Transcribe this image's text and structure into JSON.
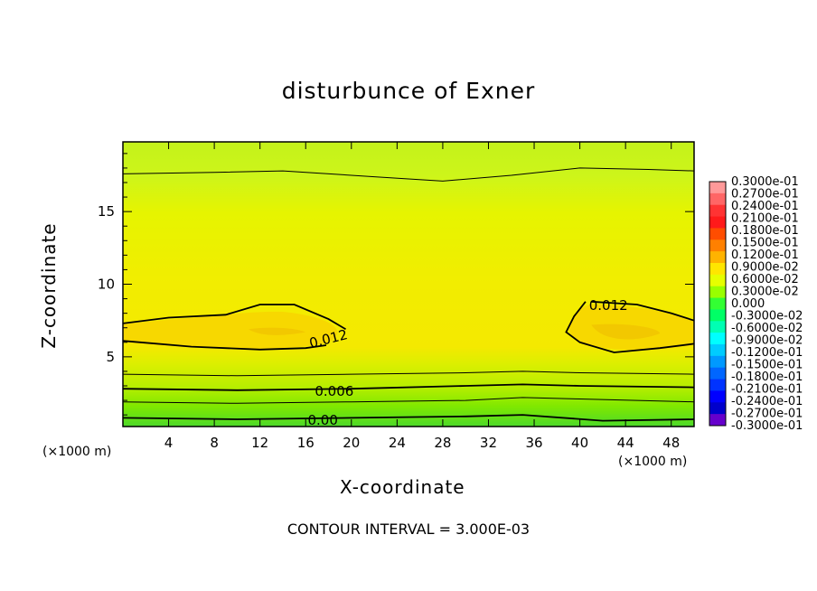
{
  "title": "disturbunce of Exner",
  "contour_interval": "CONTOUR INTERVAL = 3.000E-03",
  "x_unit": "(×1000 m)",
  "chart_data": {
    "type": "heatmap",
    "xlabel": "X-coordinate",
    "ylabel": "Z-coordinate",
    "xlim": [
      0,
      50
    ],
    "ylim": [
      0.2,
      19.8
    ],
    "x_ticks": [
      4,
      8,
      12,
      16,
      20,
      24,
      28,
      32,
      36,
      40,
      44,
      48
    ],
    "y_ticks": [
      5,
      10,
      15
    ],
    "contour_labels": [
      {
        "text": "0.012",
        "x": 18,
        "y": 6.2,
        "angle": -14
      },
      {
        "text": "0.012",
        "x": 42.5,
        "y": 8.5,
        "angle": 0
      },
      {
        "text": "0.006",
        "x": 18.5,
        "y": 2.6,
        "angle": 0
      },
      {
        "text": "0.00",
        "x": 17.5,
        "y": 0.6,
        "angle": 0
      }
    ],
    "colorbar": {
      "labels": [
        "0.3000e-01",
        "0.2700e-01",
        "0.2400e-01",
        "0.2100e-01",
        "0.1800e-01",
        "0.1500e-01",
        "0.1200e-01",
        "0.9000e-02",
        "0.6000e-02",
        "0.3000e-02",
        "0.000",
        "-0.3000e-02",
        "-0.6000e-02",
        "-0.9000e-02",
        "-0.1200e-01",
        "-0.1500e-01",
        "-0.1800e-01",
        "-0.2100e-01",
        "-0.2400e-01",
        "-0.2700e-01",
        "-0.3000e-01"
      ],
      "colors": [
        "#ff9999",
        "#ff6666",
        "#ff3333",
        "#ff1a1a",
        "#ff4d00",
        "#ff8000",
        "#ffb300",
        "#ffe600",
        "#e6ff00",
        "#99ff00",
        "#33ff33",
        "#00ff66",
        "#00ffb3",
        "#00ffff",
        "#00ccff",
        "#0099ff",
        "#0066ff",
        "#0033ff",
        "#0000ff",
        "#0000cc",
        "#6600cc"
      ]
    }
  }
}
